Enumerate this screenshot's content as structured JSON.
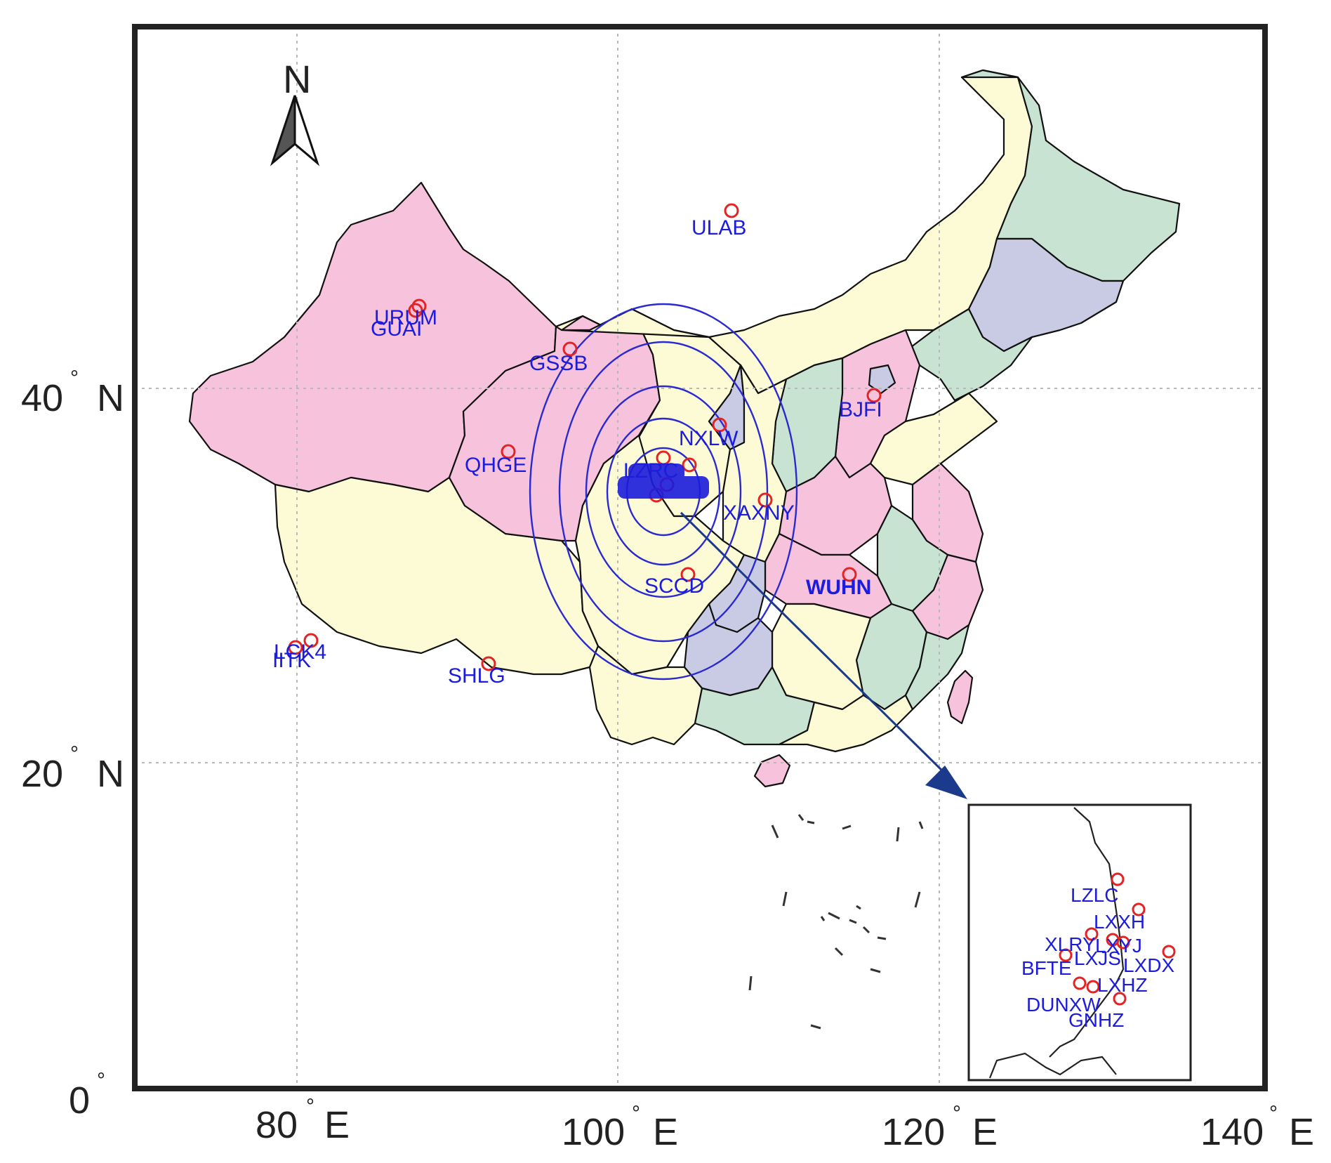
{
  "colors": {
    "pink": "#f6c2dc",
    "yellow": "#fdfbd6",
    "green": "#c9e3d3",
    "lavender": "#c8cbe3",
    "station_label": "#1c1cdc",
    "station_marker": "#e42424",
    "rings": "#2a2ad0",
    "arrow": "#1b3a8c"
  },
  "north_arrow": {
    "label": "N"
  },
  "axes": {
    "x_ticks": [
      {
        "num": "80",
        "unit": "E"
      },
      {
        "num": "100",
        "unit": "E"
      },
      {
        "num": "120",
        "unit": "E"
      },
      {
        "num": "140",
        "unit": "E"
      }
    ],
    "y_ticks": [
      {
        "num": "40",
        "unit": "N"
      },
      {
        "num": "20",
        "unit": "N"
      },
      {
        "num": "0",
        "unit": ""
      }
    ]
  },
  "stations": [
    {
      "id": "ULAB",
      "label": "ULAB"
    },
    {
      "id": "URUM",
      "label": "URUM"
    },
    {
      "id": "GUAI",
      "label": "GUAI"
    },
    {
      "id": "GSSB",
      "label": "GSSB"
    },
    {
      "id": "QHGE",
      "label": "QHGE"
    },
    {
      "id": "BJFI",
      "label": "BJFI"
    },
    {
      "id": "NXLW",
      "label": "NXLW"
    },
    {
      "id": "LZRC",
      "label": "LZRC"
    },
    {
      "id": "XAXNY",
      "label": "XAXNY"
    },
    {
      "id": "SCCD",
      "label": "SCCD"
    },
    {
      "id": "WUHN",
      "label": "WUHN"
    },
    {
      "id": "LCK4",
      "label": "LCK4"
    },
    {
      "id": "IITK",
      "label": "IITK"
    },
    {
      "id": "SHLG",
      "label": "SHLG"
    }
  ],
  "inset_stations": [
    {
      "id": "LZLC",
      "label": "LZLC"
    },
    {
      "id": "LXXH",
      "label": "LXXH"
    },
    {
      "id": "XLRY",
      "label": "XLRY"
    },
    {
      "id": "LXYJ",
      "label": "LXYJ"
    },
    {
      "id": "LXJS",
      "label": "LXJS"
    },
    {
      "id": "BFTE",
      "label": "BFTE"
    },
    {
      "id": "LXDX",
      "label": "LXDX"
    },
    {
      "id": "LXHZ",
      "label": "LXHZ"
    },
    {
      "id": "DUNXW",
      "label": "DUNXW"
    },
    {
      "id": "GNHZ",
      "label": "GNHZ"
    }
  ]
}
